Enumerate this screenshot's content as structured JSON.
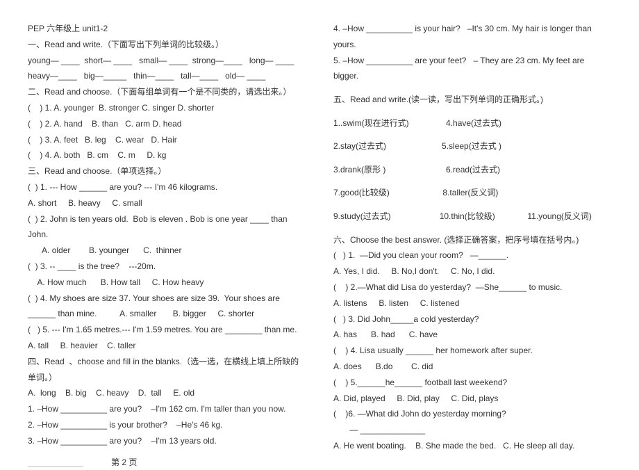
{
  "title": "PEP 六年级上 unit1-2",
  "left": [
    "一、Read and write.（下面写出下列单词的比较级。）",
    "young— ____  short— ____   small— ____  strong—____   long— ____",
    "heavy—____   big—_____   thin—____   tall—____   old— ____",
    "二、Read and choose.（下面每组单词有一个是不同类的，请选出来。）",
    "(    ) 1. A. younger  B. stronger C. singer D. shorter",
    "(    ) 2. A. hand    B. than   C. arm D. head",
    "(    ) 3. A. feet   B. leg    C. wear   D. Hair",
    "(    ) 4. A. both   B. cm    C. m     D. kg",
    "三、Read and choose.（单项选择。）",
    "(  ) 1. --- How ______ are you? --- I'm 46 kilograms.",
    "A. short     B. heavy     C. small",
    "(  ) 2. John is ten years old.  Bob is eleven . Bob is one year ____ than John.",
    "      A. older        B. younger      C.  thinner",
    "(  ) 3. -- ____ is the tree?    ---20m.",
    "    A. How much      B. How tall     C. How heavy",
    "(  ) 4. My shoes are size 37. Your shoes are size 39.  Your shoes are ______ than mine.          A. smaller       B. bigger     C. shorter",
    "(   ) 5. --- I'm 1.65 metres.--- I'm 1.59 metres. You are ________ than me.",
    "A. tall     B. heavier    C. taller",
    "四、Read  、choose and fill in the blanks.（选一选，在横线上填上所缺的单词。）",
    "A.  long    B. big    C. heavy    D.  tall     E. old",
    "1. –How __________ are you?    –I'm 162 cm. I'm taller than you now.",
    "2. –How __________ is your brother?    –He's 46 kg.",
    "3. –How __________ are you?    –I'm 13 years old."
  ],
  "right": [
    "4. –How __________ is your hair?   –It's 30 cm. My hair is longer than yours.",
    "5. –How __________ are your feet?   – They are 23 cm. My feet are bigger.",
    "",
    "五、Read and write.(读一读，写出下列单词的正确形式。)",
    "",
    "1..swim(现在进行式)                4.have(过去式)",
    "",
    "2.stay(过去式)                        5.sleep(过去式 )",
    "",
    "3.drank(原形 )                          6.read(过去式)",
    "",
    "7.good(比较级)                       8.taller(反义词)",
    "",
    "9.study(过去式)                     10.thin(比较级)              11.young(反义词)",
    "",
    "六、Choose the best answer. (选择正确答案，把序号填在括号内。)",
    "(   ) 1.  —Did you clean your room?   —______.",
    "A. Yes, I did.     B. No,I don't.     C. No, I did.",
    "(    ) 2.—What did Lisa do yesterday?  —She______ to music.",
    "A. listens     B. listen     C. listened",
    "(   ) 3. Did John_____a cold yesterday?",
    "A. has      B. had      C. have",
    "(    ) 4. Lisa usually ______ her homework after super.",
    "A. does      B.do        C. did",
    "(    ) 5.______he______ football last weekend?",
    "A. Did, played     B. Did, play     C. Did, plays",
    "(    )6. —What did John do yesterday morning?",
    "       — ______________",
    "A. He went boating.    B. She made the bed.   C. He sleep all day."
  ],
  "pageLabel": "第  2  页"
}
